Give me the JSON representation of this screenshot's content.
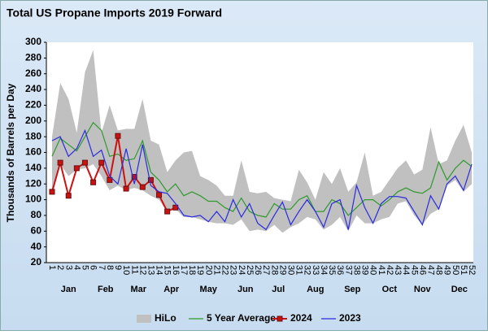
{
  "chart_data": {
    "type": "line",
    "title": "Total US Propane Imports 2019 Forward",
    "ylabel": "Thousands of Barrels per Day",
    "categories": [
      "1",
      "2",
      "3",
      "4",
      "5",
      "6",
      "7",
      "8",
      "9",
      "10",
      "11",
      "12",
      "13",
      "14",
      "15",
      "16",
      "17",
      "18",
      "19",
      "20",
      "21",
      "22",
      "23",
      "24",
      "25",
      "26",
      "27",
      "28",
      "29",
      "30",
      "31",
      "32",
      "33",
      "34",
      "35",
      "36",
      "37",
      "38",
      "39",
      "40",
      "41",
      "42",
      "43",
      "44",
      "45",
      "46",
      "47",
      "48",
      "49",
      "50",
      "51",
      "52"
    ],
    "month_ticks": [
      {
        "value": 3,
        "label": "Jan"
      },
      {
        "value": 7.5,
        "label": "Feb"
      },
      {
        "value": 11.5,
        "label": "Mar"
      },
      {
        "value": 15.5,
        "label": "Apr"
      },
      {
        "value": 20,
        "label": "May"
      },
      {
        "value": 24.5,
        "label": "Jun"
      },
      {
        "value": 28.5,
        "label": "Jul"
      },
      {
        "value": 33,
        "label": "Aug"
      },
      {
        "value": 37.5,
        "label": "Sep"
      },
      {
        "value": 42,
        "label": "Oct"
      },
      {
        "value": 46,
        "label": "Nov"
      },
      {
        "value": 50.5,
        "label": "Dec"
      }
    ],
    "ylim": [
      20,
      300
    ],
    "yticks": [
      20,
      40,
      60,
      80,
      100,
      120,
      140,
      160,
      180,
      200,
      220,
      240,
      260,
      280,
      300
    ],
    "grid": false,
    "legend": "bottom",
    "series": [
      {
        "name": "HiLo",
        "color": "#c0c0c0",
        "values": [
          180,
          248,
          228,
          185,
          262,
          290,
          185,
          220,
          188,
          190,
          190,
          228,
          175,
          170,
          135,
          150,
          160,
          162,
          130,
          125,
          118,
          105,
          105,
          150,
          110,
          108,
          110,
          102,
          100,
          98,
          138,
          122,
          100,
          135,
          120,
          140,
          110,
          122,
          160,
          105,
          110,
          125,
          140,
          150,
          132,
          138,
          192,
          145,
          150,
          175,
          195,
          160
        ],
        "low": [
          105,
          145,
          130,
          138,
          140,
          145,
          130,
          112,
          118,
          112,
          115,
          112,
          105,
          100,
          85,
          88,
          78,
          78,
          75,
          72,
          70,
          70,
          68,
          75,
          60,
          62,
          60,
          68,
          58,
          65,
          70,
          78,
          75,
          62,
          68,
          78,
          60,
          80,
          70,
          70,
          75,
          78,
          95,
          98,
          80,
          68,
          82,
          88,
          118,
          125,
          110,
          120
        ]
      },
      {
        "name": "5 Year Average",
        "color": "#2e9a2e",
        "values": [
          155,
          178,
          170,
          162,
          180,
          198,
          188,
          155,
          158,
          150,
          152,
          175,
          135,
          125,
          110,
          120,
          105,
          110,
          105,
          98,
          98,
          90,
          85,
          102,
          85,
          80,
          78,
          95,
          88,
          88,
          100,
          105,
          85,
          85,
          100,
          95,
          80,
          90,
          100,
          100,
          92,
          100,
          110,
          115,
          110,
          108,
          115,
          148,
          125,
          140,
          150,
          142
        ]
      },
      {
        "name": "2024",
        "color": "#cc1111",
        "marker": "square",
        "values": [
          110,
          147,
          105,
          140,
          147,
          122,
          147,
          125,
          181,
          114,
          129,
          116,
          125,
          106,
          85,
          90,
          null,
          null,
          null,
          null,
          null,
          null,
          null,
          null,
          null,
          null,
          null,
          null,
          null,
          null,
          null,
          null,
          null,
          null,
          null,
          null,
          null,
          null,
          null,
          null,
          null,
          null,
          null,
          null,
          null,
          null,
          null,
          null,
          null,
          null,
          null,
          null
        ]
      },
      {
        "name": "2023",
        "color": "#2a2ae0",
        "values": [
          175,
          180,
          155,
          165,
          188,
          155,
          163,
          130,
          120,
          165,
          120,
          170,
          118,
          110,
          108,
          95,
          80,
          78,
          80,
          72,
          85,
          72,
          100,
          78,
          95,
          70,
          62,
          80,
          97,
          68,
          85,
          100,
          85,
          65,
          95,
          100,
          62,
          118,
          90,
          70,
          95,
          104,
          104,
          102,
          85,
          68,
          105,
          88,
          120,
          130,
          112,
          145
        ]
      }
    ]
  }
}
